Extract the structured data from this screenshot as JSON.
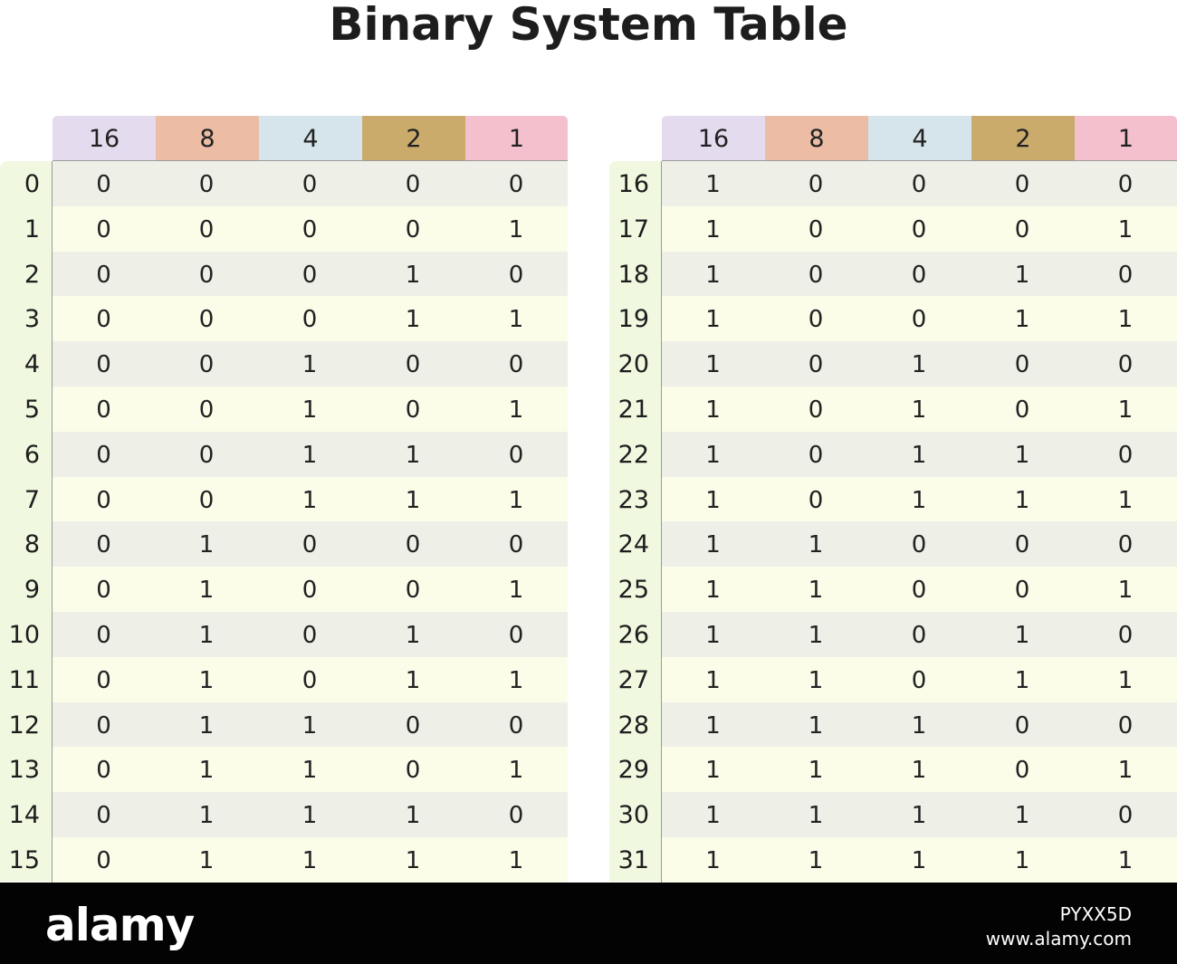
{
  "title": "Binary System Table",
  "headers": [
    "16",
    "8",
    "4",
    "2",
    "1"
  ],
  "header_colors": [
    "#e5dbee",
    "#ecbda4",
    "#d6e5ec",
    "#caab6c",
    "#f5c0ce"
  ],
  "tables": [
    {
      "rows": [
        {
          "label": "0",
          "bits": [
            "0",
            "0",
            "0",
            "0",
            "0"
          ]
        },
        {
          "label": "1",
          "bits": [
            "0",
            "0",
            "0",
            "0",
            "1"
          ]
        },
        {
          "label": "2",
          "bits": [
            "0",
            "0",
            "0",
            "1",
            "0"
          ]
        },
        {
          "label": "3",
          "bits": [
            "0",
            "0",
            "0",
            "1",
            "1"
          ]
        },
        {
          "label": "4",
          "bits": [
            "0",
            "0",
            "1",
            "0",
            "0"
          ]
        },
        {
          "label": "5",
          "bits": [
            "0",
            "0",
            "1",
            "0",
            "1"
          ]
        },
        {
          "label": "6",
          "bits": [
            "0",
            "0",
            "1",
            "1",
            "0"
          ]
        },
        {
          "label": "7",
          "bits": [
            "0",
            "0",
            "1",
            "1",
            "1"
          ]
        },
        {
          "label": "8",
          "bits": [
            "0",
            "1",
            "0",
            "0",
            "0"
          ]
        },
        {
          "label": "9",
          "bits": [
            "0",
            "1",
            "0",
            "0",
            "1"
          ]
        },
        {
          "label": "10",
          "bits": [
            "0",
            "1",
            "0",
            "1",
            "0"
          ]
        },
        {
          "label": "11",
          "bits": [
            "0",
            "1",
            "0",
            "1",
            "1"
          ]
        },
        {
          "label": "12",
          "bits": [
            "0",
            "1",
            "1",
            "0",
            "0"
          ]
        },
        {
          "label": "13",
          "bits": [
            "0",
            "1",
            "1",
            "0",
            "1"
          ]
        },
        {
          "label": "14",
          "bits": [
            "0",
            "1",
            "1",
            "1",
            "0"
          ]
        },
        {
          "label": "15",
          "bits": [
            "0",
            "1",
            "1",
            "1",
            "1"
          ]
        }
      ]
    },
    {
      "rows": [
        {
          "label": "16",
          "bits": [
            "1",
            "0",
            "0",
            "0",
            "0"
          ]
        },
        {
          "label": "17",
          "bits": [
            "1",
            "0",
            "0",
            "0",
            "1"
          ]
        },
        {
          "label": "18",
          "bits": [
            "1",
            "0",
            "0",
            "1",
            "0"
          ]
        },
        {
          "label": "19",
          "bits": [
            "1",
            "0",
            "0",
            "1",
            "1"
          ]
        },
        {
          "label": "20",
          "bits": [
            "1",
            "0",
            "1",
            "0",
            "0"
          ]
        },
        {
          "label": "21",
          "bits": [
            "1",
            "0",
            "1",
            "0",
            "1"
          ]
        },
        {
          "label": "22",
          "bits": [
            "1",
            "0",
            "1",
            "1",
            "0"
          ]
        },
        {
          "label": "23",
          "bits": [
            "1",
            "0",
            "1",
            "1",
            "1"
          ]
        },
        {
          "label": "24",
          "bits": [
            "1",
            "1",
            "0",
            "0",
            "0"
          ]
        },
        {
          "label": "25",
          "bits": [
            "1",
            "1",
            "0",
            "0",
            "1"
          ]
        },
        {
          "label": "26",
          "bits": [
            "1",
            "1",
            "0",
            "1",
            "0"
          ]
        },
        {
          "label": "27",
          "bits": [
            "1",
            "1",
            "0",
            "1",
            "1"
          ]
        },
        {
          "label": "28",
          "bits": [
            "1",
            "1",
            "1",
            "0",
            "0"
          ]
        },
        {
          "label": "29",
          "bits": [
            "1",
            "1",
            "1",
            "0",
            "1"
          ]
        },
        {
          "label": "30",
          "bits": [
            "1",
            "1",
            "1",
            "1",
            "0"
          ]
        },
        {
          "label": "31",
          "bits": [
            "1",
            "1",
            "1",
            "1",
            "1"
          ]
        }
      ]
    }
  ],
  "watermark": {
    "logo": "alamy",
    "code": "PYXX5D",
    "url": "www.alamy.com"
  }
}
